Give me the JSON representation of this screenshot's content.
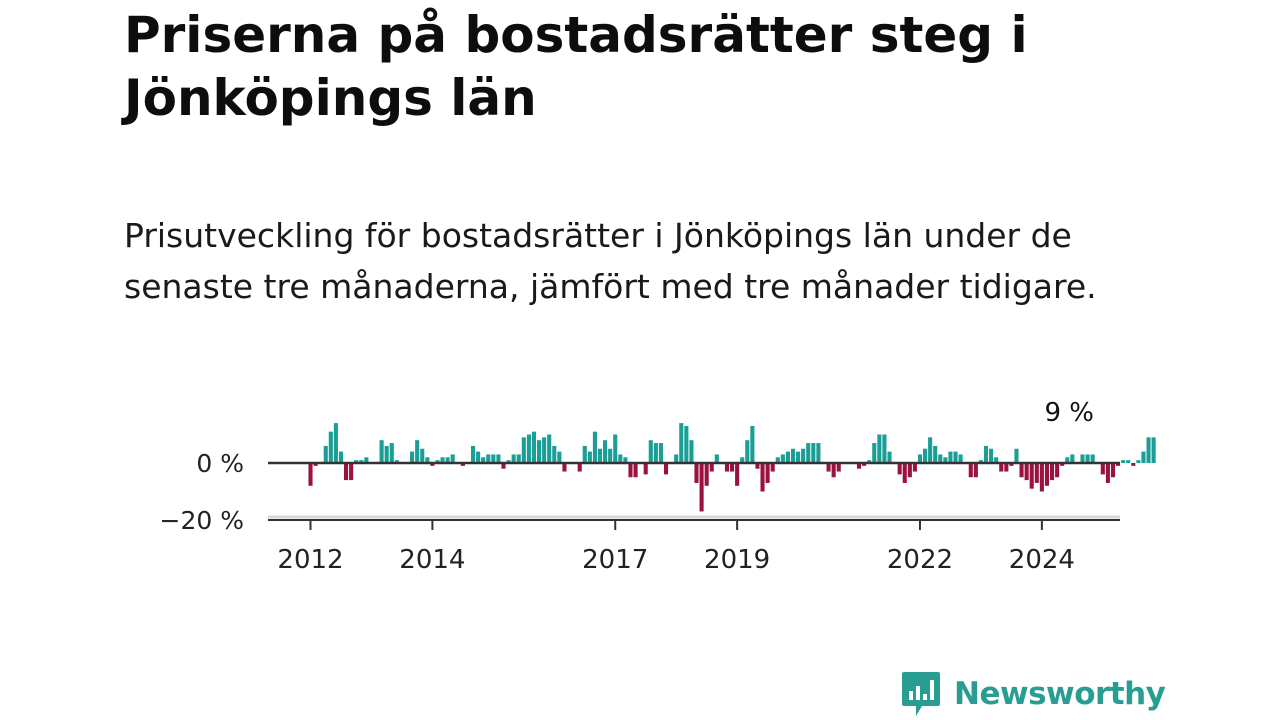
{
  "title": "Priserna på bostadsrätter steg i Jönköpings län",
  "subtitle": "Prisutveckling för bostadsrätter i Jönköpings län under de senaste tre månaderna, jämfört med tre månader tidigare.",
  "brand": "Newsworthy",
  "colors": {
    "positive": "#1a9e96",
    "negative": "#9b1240",
    "axis": "#333333",
    "grid": "#d8d8d8",
    "brand": "#2a9d93"
  },
  "chart_data": {
    "type": "bar",
    "x_unit": "month",
    "start": "2012-01",
    "y_tick_labels": [
      "0 %",
      "−20 %"
    ],
    "y_ticks": [
      0,
      -20
    ],
    "ylim": [
      -20,
      17
    ],
    "x_tick_labels": [
      "2012",
      "2014",
      "2017",
      "2019",
      "2022",
      "2024"
    ],
    "x_ticks": [
      "2012-01",
      "2014-01",
      "2017-01",
      "2019-01",
      "2022-01",
      "2024-01"
    ],
    "annotation": {
      "text": "9 %",
      "at": "2024-06"
    },
    "values": [
      -8,
      -1,
      0,
      6,
      11,
      14,
      4,
      -6,
      -6,
      1,
      1,
      2,
      0,
      0,
      8,
      6,
      7,
      1,
      0,
      0,
      4,
      8,
      5,
      2,
      -1,
      1,
      2,
      2,
      3,
      0,
      -1,
      0,
      6,
      4,
      2,
      3,
      3,
      3,
      -2,
      1,
      3,
      3,
      9,
      10,
      11,
      8,
      9,
      10,
      6,
      4,
      -3,
      0,
      0,
      -3,
      6,
      4,
      11,
      5,
      8,
      5,
      10,
      3,
      2,
      -5,
      -5,
      0,
      -4,
      8,
      7,
      7,
      -4,
      0,
      3,
      14,
      13,
      8,
      -7,
      -17,
      -8,
      -3,
      3,
      0,
      -3,
      -3,
      -8,
      2,
      8,
      13,
      -2,
      -10,
      -7,
      -3,
      2,
      3,
      4,
      5,
      4,
      5,
      7,
      7,
      7,
      0,
      -3,
      -5,
      -3,
      0,
      0,
      0,
      -2,
      -1,
      1,
      7,
      10,
      10,
      4,
      0,
      -4,
      -7,
      -5,
      -3,
      3,
      5,
      9,
      6,
      3,
      2,
      4,
      4,
      3,
      0,
      -5,
      -5,
      1,
      6,
      5,
      2,
      -3,
      -3,
      -1,
      5,
      -5,
      -6,
      -9,
      -7,
      -10,
      -8,
      -6,
      -5,
      -1,
      2,
      3,
      0,
      3,
      3,
      3,
      0,
      -4,
      -7,
      -5,
      -1,
      1,
      1,
      -1,
      1,
      4,
      9,
      9
    ]
  }
}
